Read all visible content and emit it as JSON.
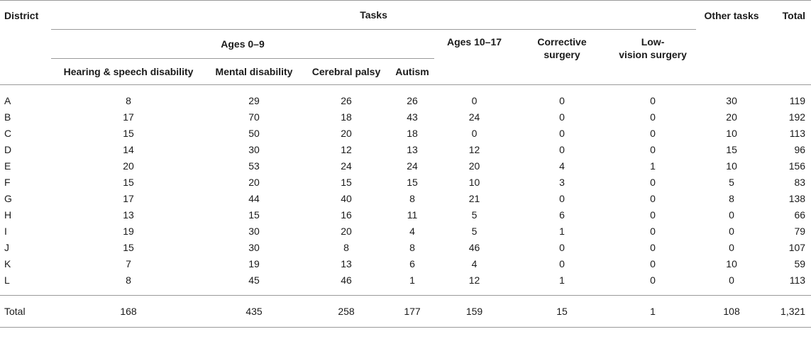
{
  "headers": {
    "district": "District",
    "tasks": "Tasks",
    "ages_0_9": "Ages 0–9",
    "hearing": "Hearing & speech disability",
    "mental": "Mental disability",
    "cerebral": "Cerebral palsy",
    "autism": "Autism",
    "ages_10_17": "Ages 10–17",
    "corrective_l1": "Corrective",
    "corrective_l2": "surgery",
    "lowvision_l1": "Low-",
    "lowvision_l2": "vision surgery",
    "other": "Other tasks",
    "total": "Total"
  },
  "rows": [
    [
      "A",
      "8",
      "29",
      "26",
      "26",
      "0",
      "0",
      "0",
      "30",
      "119"
    ],
    [
      "B",
      "17",
      "70",
      "18",
      "43",
      "24",
      "0",
      "0",
      "20",
      "192"
    ],
    [
      "C",
      "15",
      "50",
      "20",
      "18",
      "0",
      "0",
      "0",
      "10",
      "113"
    ],
    [
      "D",
      "14",
      "30",
      "12",
      "13",
      "12",
      "0",
      "0",
      "15",
      "96"
    ],
    [
      "E",
      "20",
      "53",
      "24",
      "24",
      "20",
      "4",
      "1",
      "10",
      "156"
    ],
    [
      "F",
      "15",
      "20",
      "15",
      "15",
      "10",
      "3",
      "0",
      "5",
      "83"
    ],
    [
      "G",
      "17",
      "44",
      "40",
      "8",
      "21",
      "0",
      "0",
      "8",
      "138"
    ],
    [
      "H",
      "13",
      "15",
      "16",
      "11",
      "5",
      "6",
      "0",
      "0",
      "66"
    ],
    [
      "I",
      "19",
      "30",
      "20",
      "4",
      "5",
      "1",
      "0",
      "0",
      "79"
    ],
    [
      "J",
      "15",
      "30",
      "8",
      "8",
      "46",
      "0",
      "0",
      "0",
      "107"
    ],
    [
      "K",
      "7",
      "19",
      "13",
      "6",
      "4",
      "0",
      "0",
      "10",
      "59"
    ],
    [
      "L",
      "8",
      "45",
      "46",
      "1",
      "12",
      "1",
      "0",
      "0",
      "113"
    ]
  ],
  "total_row": [
    "Total",
    "168",
    "435",
    "258",
    "177",
    "159",
    "15",
    "1",
    "108",
    "1,321"
  ]
}
